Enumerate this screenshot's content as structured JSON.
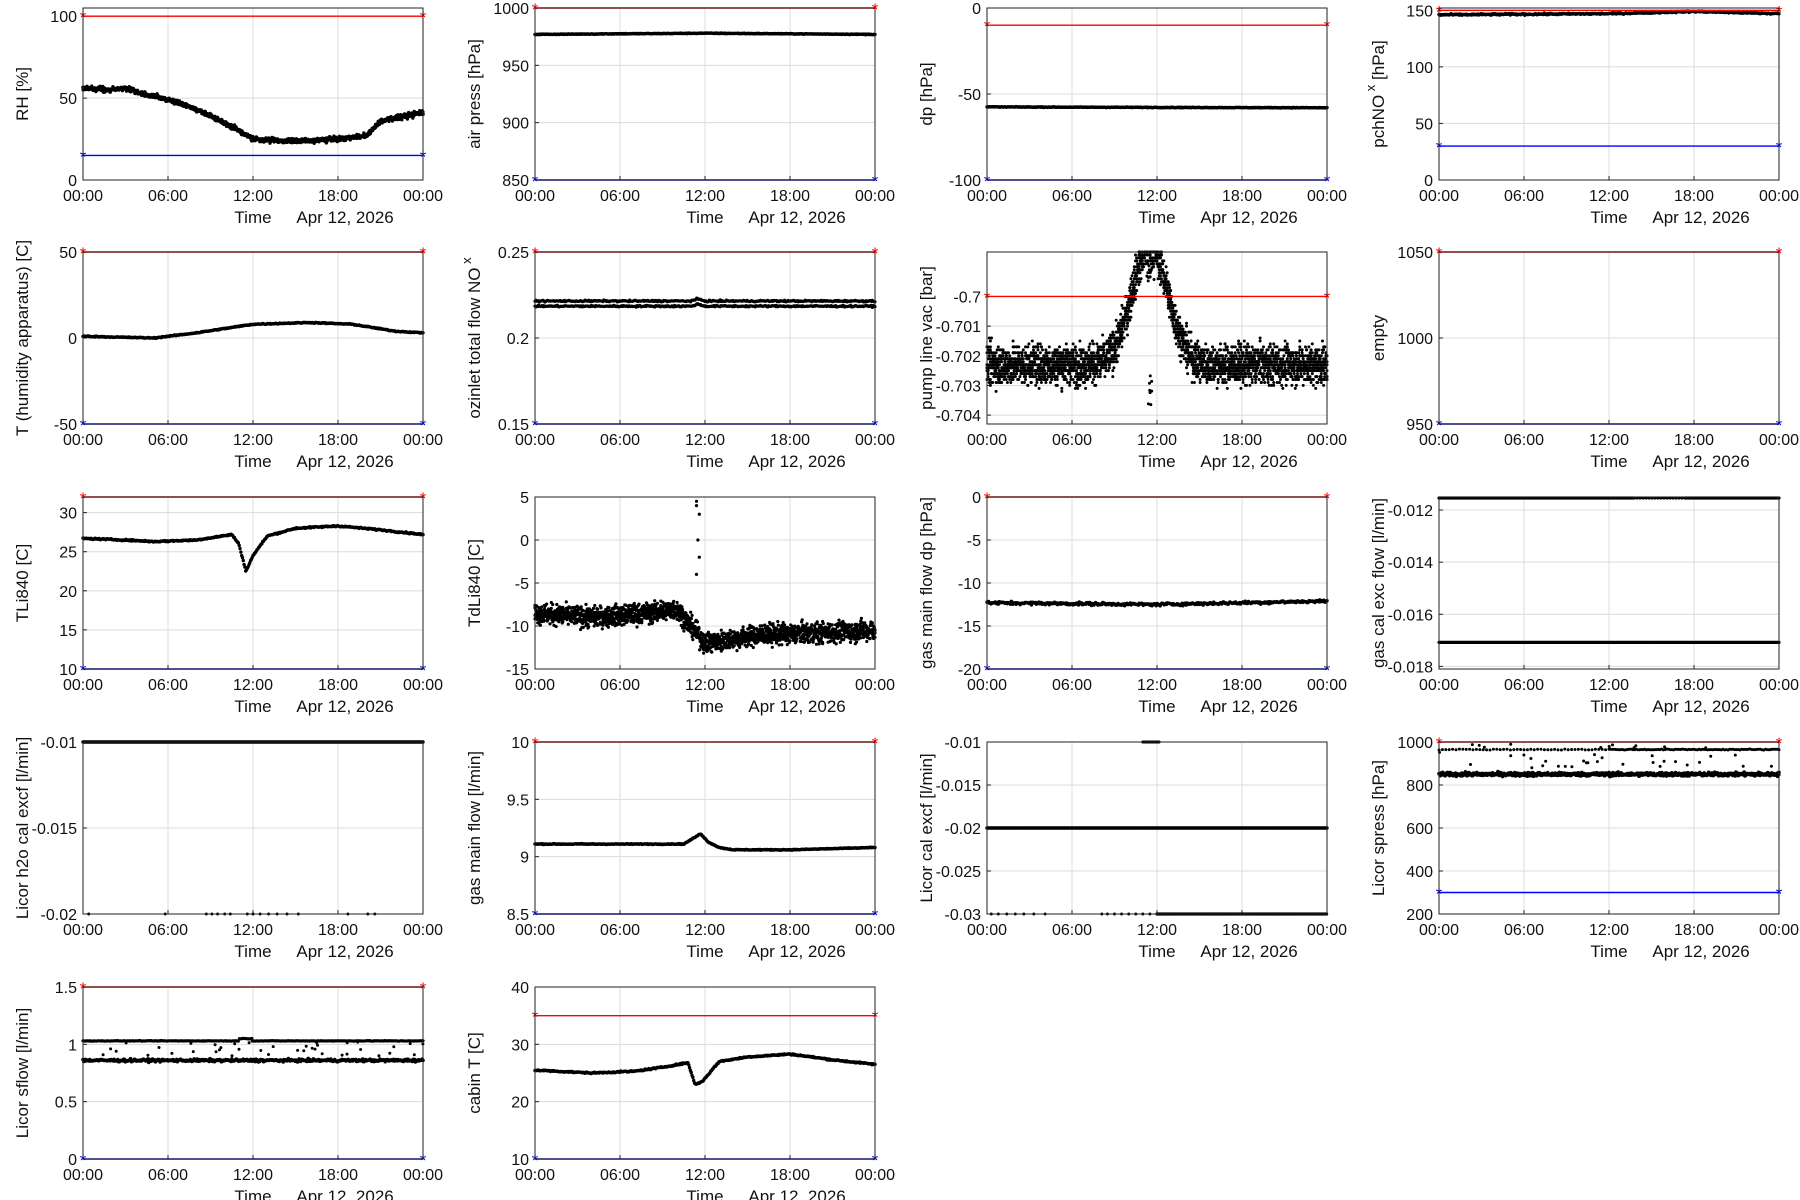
{
  "figure": {
    "x_ticks": [
      "00:00",
      "06:00",
      "12:00",
      "18:00",
      "00:00"
    ],
    "x_label": "Time",
    "date": "Apr 12, 2026",
    "colors": {
      "upper_limit": "#ff0000",
      "lower_limit": "#0000ff",
      "data": "#000000",
      "grid": "#dcdcdc"
    }
  },
  "chart_data": [
    {
      "type": "scatter",
      "id": "rh",
      "ylabel": "RH [%]",
      "ylim": [
        0,
        105
      ],
      "yticks": [
        "0",
        "50",
        "100"
      ],
      "ytick_values": [
        0,
        50,
        100
      ],
      "upper": 100,
      "lower": 15,
      "series": {
        "kind": "rh",
        "points": [
          [
            0,
            56
          ],
          [
            2,
            55
          ],
          [
            3,
            56
          ],
          [
            4,
            53
          ],
          [
            6,
            49
          ],
          [
            8,
            43
          ],
          [
            10,
            35
          ],
          [
            11,
            30
          ],
          [
            12,
            25
          ],
          [
            14,
            24
          ],
          [
            16,
            24
          ],
          [
            18,
            25
          ],
          [
            20,
            27
          ],
          [
            21,
            36
          ],
          [
            22,
            38
          ],
          [
            24,
            41
          ]
        ],
        "noise": 3
      }
    },
    {
      "type": "scatter",
      "id": "airpress",
      "ylabel": "air press [hPa]",
      "ylim": [
        850,
        1000
      ],
      "yticks": [
        "850",
        "900",
        "950",
        "1000"
      ],
      "ytick_values": [
        850,
        900,
        950,
        1000
      ],
      "upper": 1000,
      "lower": 850,
      "series": {
        "kind": "line",
        "points": [
          [
            0,
            977
          ],
          [
            12,
            978
          ],
          [
            24,
            977
          ]
        ],
        "noise": 0.5
      }
    },
    {
      "type": "scatter",
      "id": "dp",
      "ylabel": "dp [hPa]",
      "ylim": [
        -100,
        0
      ],
      "yticks": [
        "-100",
        "-50",
        "0"
      ],
      "ytick_values": [
        -100,
        -50,
        0
      ],
      "upper": -10,
      "lower": -100,
      "series": {
        "kind": "line",
        "points": [
          [
            0,
            -57.5
          ],
          [
            12,
            -57.8
          ],
          [
            24,
            -58
          ]
        ],
        "noise": 0.3
      }
    },
    {
      "type": "scatter",
      "id": "pchnox",
      "ylabel": "pchNO",
      "ylabel_sub": "x",
      "ylabel_suffix": "[hPa]",
      "ylim": [
        0,
        152
      ],
      "yticks": [
        "0",
        "50",
        "100",
        "150"
      ],
      "ytick_values": [
        0,
        50,
        100,
        150
      ],
      "upper": 150,
      "lower": 30,
      "series": {
        "kind": "line",
        "points": [
          [
            0,
            146
          ],
          [
            12,
            147
          ],
          [
            18,
            149
          ],
          [
            24,
            147
          ]
        ],
        "noise": 1.2
      }
    },
    {
      "type": "scatter",
      "id": "thumid",
      "ylabel": "T (humidity apparatus) [C]",
      "ylim": [
        -50,
        50
      ],
      "yticks": [
        "-50",
        "0",
        "50"
      ],
      "ytick_values": [
        -50,
        0,
        50
      ],
      "upper": 50,
      "lower": -50,
      "series": {
        "kind": "line",
        "points": [
          [
            0,
            1
          ],
          [
            5,
            0
          ],
          [
            8,
            3
          ],
          [
            12,
            8
          ],
          [
            16,
            9
          ],
          [
            19,
            8
          ],
          [
            22,
            4
          ],
          [
            24,
            3
          ]
        ],
        "noise": 0.5
      }
    },
    {
      "type": "scatter",
      "id": "ozinlet",
      "ylabel": "ozinlet total flow NO",
      "ylabel_sub": "x",
      "ylim": [
        0.15,
        0.25
      ],
      "yticks": [
        "0.15",
        "0.2",
        "0.25"
      ],
      "ytick_values": [
        0.15,
        0.2,
        0.25
      ],
      "upper": 0.25,
      "lower": 0.15,
      "series": {
        "kind": "band",
        "lines": [
          0.2185,
          0.2215
        ],
        "noise": 0.0008
      }
    },
    {
      "type": "scatter",
      "id": "pumpvac",
      "ylabel": "pump line vac [bar]",
      "ylim": [
        -0.7043,
        -0.6985
      ],
      "yticks": [
        "-0.704",
        "-0.703",
        "-0.702",
        "-0.701",
        "-0.7"
      ],
      "ytick_values": [
        -0.704,
        -0.703,
        -0.702,
        -0.701,
        -0.7
      ],
      "upper": -0.7,
      "lower": null,
      "series": {
        "kind": "dots",
        "center": -0.7023,
        "spread": 0.0008,
        "step": 0.0001,
        "peak_x": 11.5,
        "peak_v": -0.6995,
        "dip": -0.7038
      }
    },
    {
      "type": "scatter",
      "id": "empty",
      "ylabel": "empty",
      "ylim": [
        950,
        1050
      ],
      "yticks": [
        "950",
        "1000",
        "1050"
      ],
      "ytick_values": [
        950,
        1000,
        1050
      ],
      "upper": 1050,
      "lower": 950,
      "series": {
        "kind": "none"
      }
    },
    {
      "type": "scatter",
      "id": "tli840",
      "ylabel": "TLi840 [C]",
      "ylim": [
        10,
        32
      ],
      "yticks": [
        "10",
        "15",
        "20",
        "25",
        "30"
      ],
      "ytick_values": [
        10,
        15,
        20,
        25,
        30
      ],
      "upper": 32,
      "lower": 10,
      "series": {
        "kind": "line",
        "points": [
          [
            0,
            26.7
          ],
          [
            3,
            26.5
          ],
          [
            5,
            26.3
          ],
          [
            8,
            26.5
          ],
          [
            10.5,
            27.2
          ],
          [
            11,
            26
          ],
          [
            11.5,
            22.5
          ],
          [
            12,
            24.5
          ],
          [
            13,
            27
          ],
          [
            15,
            28
          ],
          [
            18,
            28.3
          ],
          [
            21,
            27.8
          ],
          [
            24,
            27.2
          ]
        ],
        "noise": 0.15
      }
    },
    {
      "type": "scatter",
      "id": "tdli840",
      "ylabel": "TdLi840 [C]",
      "ylim": [
        -15,
        5
      ],
      "yticks": [
        "-15",
        "-10",
        "-5",
        "0",
        "5"
      ],
      "ytick_values": [
        -15,
        -10,
        -5,
        0,
        5
      ],
      "upper": null,
      "lower": null,
      "series": {
        "kind": "tdli",
        "points": [
          [
            0,
            -8.5
          ],
          [
            4,
            -9
          ],
          [
            8,
            -8.5
          ],
          [
            10,
            -8
          ],
          [
            11.5,
            -11
          ],
          [
            12,
            -12
          ],
          [
            16,
            -11
          ],
          [
            20,
            -10.8
          ],
          [
            24,
            -10.5
          ]
        ],
        "noise": 2,
        "spikes": [
          [
            11.4,
            4.5
          ],
          [
            11.4,
            4
          ],
          [
            11.6,
            3
          ],
          [
            11.5,
            0
          ],
          [
            11.6,
            -2
          ],
          [
            11.4,
            -4
          ]
        ]
      }
    },
    {
      "type": "scatter",
      "id": "gasdp",
      "ylabel": "gas main flow dp [hPa]",
      "ylim": [
        -20,
        0
      ],
      "yticks": [
        "-20",
        "-15",
        "-10",
        "-5",
        "0"
      ],
      "ytick_values": [
        -20,
        -15,
        -10,
        -5,
        0
      ],
      "upper": 0,
      "lower": -20,
      "series": {
        "kind": "line",
        "points": [
          [
            0,
            -12.3
          ],
          [
            12,
            -12.5
          ],
          [
            24,
            -12.1
          ]
        ],
        "noise": 0.3
      }
    },
    {
      "type": "scatter",
      "id": "gascalexc",
      "ylabel": "gas cal exc flow [l/min]",
      "ylim": [
        -0.0181,
        -0.0115
      ],
      "yticks": [
        "-0.018",
        "-0.016",
        "-0.014",
        "-0.012"
      ],
      "ytick_values": [
        -0.018,
        -0.016,
        -0.014,
        -0.012
      ],
      "upper": null,
      "lower": null,
      "series": {
        "kind": "twolines",
        "lines": [
          -0.01154,
          -0.01708
        ]
      }
    },
    {
      "type": "scatter",
      "id": "h2ocal",
      "ylabel": "Licor h2o cal excf [l/min]",
      "ylim": [
        -0.02,
        -0.01
      ],
      "yticks": [
        "-0.02",
        "-0.015",
        "-0.01"
      ],
      "ytick_values": [
        -0.02,
        -0.015,
        -0.01
      ],
      "upper": null,
      "lower": null,
      "series": {
        "kind": "flatdots",
        "line": -0.01,
        "dot_value": -0.02,
        "dots": [
          0.4,
          5.8,
          8.7,
          9.1,
          9.5,
          10,
          10.4,
          11.6,
          12,
          12.5,
          13.1,
          13.7,
          14.4,
          15.2,
          18.7,
          20.1,
          20.6
        ]
      }
    },
    {
      "type": "scatter",
      "id": "gasflow",
      "ylabel": "gas main flow [l/min]",
      "ylim": [
        8.5,
        10
      ],
      "yticks": [
        "8.5",
        "9",
        "9.5",
        "10"
      ],
      "ytick_values": [
        8.5,
        9,
        9.5,
        10
      ],
      "upper": 10,
      "lower": 8.5,
      "series": {
        "kind": "line",
        "points": [
          [
            0,
            9.11
          ],
          [
            10.5,
            9.11
          ],
          [
            11.3,
            9.17
          ],
          [
            11.7,
            9.2
          ],
          [
            12.2,
            9.13
          ],
          [
            13,
            9.08
          ],
          [
            14,
            9.06
          ],
          [
            18,
            9.06
          ],
          [
            24,
            9.08
          ]
        ],
        "noise": 0.006
      }
    },
    {
      "type": "scatter",
      "id": "licorcal",
      "ylabel": "Licor cal excf [l/min]",
      "ylim": [
        -0.03,
        -0.01
      ],
      "yticks": [
        "-0.03",
        "-0.025",
        "-0.02",
        "-0.015",
        "-0.01"
      ],
      "ytick_values": [
        -0.03,
        -0.025,
        -0.02,
        -0.015,
        -0.01
      ],
      "upper": null,
      "lower": null,
      "series": {
        "kind": "calexcf",
        "line": -0.02,
        "top_range": [
          11,
          12.2
        ],
        "bottom_range": [
          12,
          24
        ],
        "bottom_dots": [
          0.3,
          0.8,
          1.4,
          2,
          2.6,
          3.3,
          4.1,
          8.1,
          8.5,
          9,
          9.5,
          10,
          10.5,
          11,
          11.5
        ]
      }
    },
    {
      "type": "scatter",
      "id": "spress",
      "ylabel": "Licor spress [hPa]",
      "ylim": [
        200,
        1000
      ],
      "yticks": [
        "200",
        "400",
        "600",
        "800",
        "1000"
      ],
      "ytick_values": [
        200,
        400,
        600,
        800,
        1000
      ],
      "upper": 1000,
      "lower": 300,
      "series": {
        "kind": "spress",
        "main": 850,
        "noise": 15,
        "upper_band": 965
      }
    },
    {
      "type": "scatter",
      "id": "sflow",
      "ylabel": "Licor sflow [l/min]",
      "ylim": [
        0,
        1.5
      ],
      "yticks": [
        "0",
        "0.5",
        "1",
        "1.5"
      ],
      "ytick_values": [
        0,
        0.5,
        1,
        1.5
      ],
      "upper": 1.5,
      "lower": 0,
      "series": {
        "kind": "sflow",
        "main": 0.86,
        "noise": 0.02,
        "upper_band": 1.03
      }
    },
    {
      "type": "scatter",
      "id": "cabint",
      "ylabel": "cabin T [C]",
      "ylim": [
        10,
        40
      ],
      "yticks": [
        "10",
        "20",
        "30",
        "40"
      ],
      "ytick_values": [
        10,
        20,
        30,
        40
      ],
      "upper": 35,
      "lower": 10,
      "series": {
        "kind": "line",
        "points": [
          [
            0,
            25.5
          ],
          [
            4,
            25
          ],
          [
            7,
            25.3
          ],
          [
            9,
            26
          ],
          [
            10.8,
            26.8
          ],
          [
            11.3,
            23
          ],
          [
            11.8,
            23.5
          ],
          [
            13,
            27
          ],
          [
            15,
            27.8
          ],
          [
            18,
            28.3
          ],
          [
            21,
            27.3
          ],
          [
            24,
            26.5
          ]
        ],
        "noise": 0.2
      }
    }
  ]
}
